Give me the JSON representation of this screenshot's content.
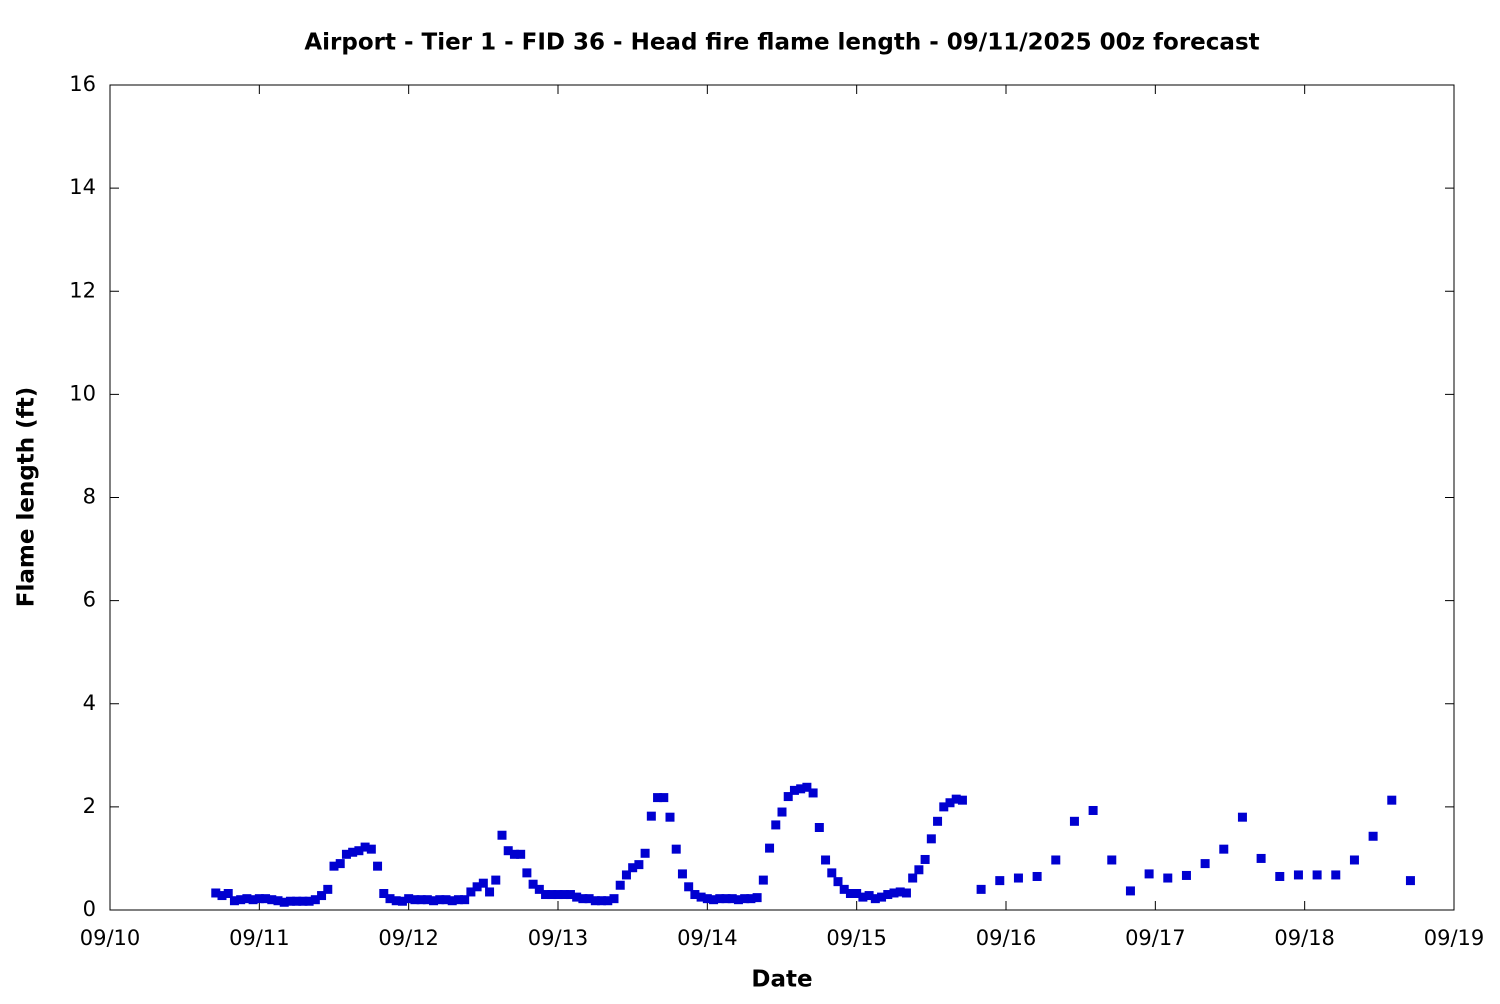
{
  "chart_data": {
    "type": "scatter",
    "title": "Airport - Tier 1 - FID 36 - Head fire flame length - 09/11/2025 00z forecast",
    "x_label": "Date",
    "y_label": "Flame length (ft)",
    "xlim": [
      0,
      216
    ],
    "xticks": [
      {
        "value": 0,
        "label": "09/10"
      },
      {
        "value": 24,
        "label": "09/11"
      },
      {
        "value": 48,
        "label": "09/12"
      },
      {
        "value": 72,
        "label": "09/13"
      },
      {
        "value": 96,
        "label": "09/14"
      },
      {
        "value": 120,
        "label": "09/15"
      },
      {
        "value": 144,
        "label": "09/16"
      },
      {
        "value": 168,
        "label": "09/17"
      },
      {
        "value": 192,
        "label": "09/18"
      },
      {
        "value": 216,
        "label": "09/19"
      }
    ],
    "ylim": [
      0,
      16
    ],
    "yticks": [
      0,
      2,
      4,
      6,
      8,
      10,
      12,
      14,
      16
    ],
    "color": "#0000d0",
    "x": [
      17,
      18,
      19,
      20,
      21,
      22,
      23,
      24,
      25,
      26,
      27,
      28,
      29,
      30,
      31,
      32,
      33,
      34,
      35,
      36,
      37,
      38,
      39,
      40,
      41,
      42,
      43,
      44,
      45,
      46,
      47,
      48,
      49,
      50,
      51,
      52,
      53,
      54,
      55,
      56,
      57,
      58,
      59,
      60,
      61,
      62,
      63,
      64,
      65,
      66,
      67,
      68,
      69,
      70,
      71,
      72,
      73,
      74,
      75,
      76,
      77,
      78,
      79,
      80,
      81,
      82,
      83,
      84,
      85,
      86,
      87,
      88,
      89,
      90,
      91,
      92,
      93,
      94,
      95,
      96,
      97,
      98,
      99,
      100,
      101,
      102,
      103,
      104,
      105,
      106,
      107,
      108,
      109,
      110,
      111,
      112,
      113,
      114,
      115,
      116,
      117,
      118,
      119,
      120,
      121,
      122,
      123,
      124,
      125,
      126,
      127,
      128,
      129,
      130,
      131,
      132,
      133,
      134,
      135,
      136,
      137,
      140,
      143,
      146,
      149,
      152,
      155,
      158,
      161,
      164,
      167,
      170,
      173,
      176,
      179,
      182,
      185,
      188,
      191,
      194,
      197,
      200,
      203,
      206,
      209
    ],
    "values": [
      0.33,
      0.28,
      0.32,
      0.18,
      0.2,
      0.22,
      0.2,
      0.22,
      0.22,
      0.2,
      0.18,
      0.15,
      0.17,
      0.17,
      0.17,
      0.17,
      0.2,
      0.28,
      0.4,
      0.85,
      0.9,
      1.08,
      1.12,
      1.15,
      1.22,
      1.18,
      0.85,
      0.32,
      0.22,
      0.18,
      0.17,
      0.22,
      0.2,
      0.2,
      0.2,
      0.18,
      0.2,
      0.2,
      0.18,
      0.2,
      0.2,
      0.35,
      0.45,
      0.52,
      0.35,
      0.58,
      1.45,
      1.15,
      1.08,
      1.08,
      0.72,
      0.5,
      0.4,
      0.3,
      0.3,
      0.3,
      0.3,
      0.3,
      0.25,
      0.22,
      0.22,
      0.18,
      0.18,
      0.18,
      0.22,
      0.48,
      0.68,
      0.82,
      0.88,
      1.1,
      1.82,
      2.18,
      2.18,
      1.8,
      1.18,
      0.7,
      0.45,
      0.3,
      0.25,
      0.22,
      0.2,
      0.22,
      0.22,
      0.22,
      0.2,
      0.22,
      0.22,
      0.24,
      0.58,
      1.2,
      1.65,
      1.9,
      2.2,
      2.32,
      2.35,
      2.38,
      2.27,
      1.6,
      0.97,
      0.72,
      0.55,
      0.4,
      0.32,
      0.32,
      0.25,
      0.28,
      0.22,
      0.25,
      0.3,
      0.33,
      0.35,
      0.33,
      0.62,
      0.78,
      0.98,
      1.38,
      1.72,
      2.0,
      2.08,
      2.15,
      2.13,
      0.4,
      0.57,
      0.62,
      0.65,
      0.97,
      1.72,
      1.93,
      0.97,
      0.37,
      0.7,
      0.62,
      0.67,
      0.9,
      1.18,
      1.8,
      1.0,
      0.65,
      0.68,
      0.68,
      0.68,
      0.97,
      1.43,
      2.13,
      0.57
    ]
  }
}
